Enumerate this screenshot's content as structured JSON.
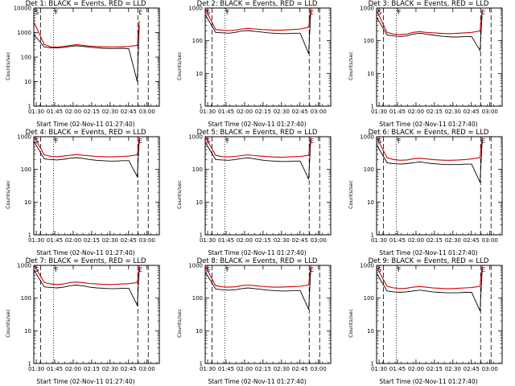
{
  "chart_data": [
    {
      "type": "line",
      "title": "Det 1: BLACK = Events, RED = LLD",
      "ylabel": "Counts/sec",
      "xlabel": "Start Time (02-Nov-11 01:27:40)",
      "yscale": "log",
      "ylim": [
        1,
        10000
      ],
      "yticks": [
        "1",
        "10",
        "100",
        "1000",
        "10000"
      ],
      "xticks": [
        "01:30",
        "01:45",
        "02:00",
        "02:15",
        "02:30",
        "02:45",
        "03:00"
      ],
      "markers": {
        "start": "S",
        "flare": "F",
        "end": "E"
      },
      "series": [
        {
          "color": "#000000",
          "values": [
            800,
            260,
            240,
            235,
            250,
            270,
            290,
            270,
            255,
            240,
            230,
            225,
            225,
            230,
            220,
            10,
            2000
          ]
        },
        {
          "color": "#d10000",
          "values": [
            2500,
            330,
            260,
            255,
            270,
            300,
            320,
            300,
            280,
            270,
            265,
            260,
            260,
            265,
            270,
            300,
            3000
          ]
        }
      ]
    },
    {
      "type": "line",
      "title": "Det 2: BLACK = Events, RED = LLD",
      "ylabel": "Counts/sec",
      "xlabel": "Start Time (02-Nov-11 01:27:40)",
      "yscale": "log",
      "ylim": [
        1,
        1000
      ],
      "yticks": [
        "1",
        "10",
        "100",
        "1000"
      ],
      "xticks": [
        "01:30",
        "01:45",
        "02:00",
        "02:15",
        "02:30",
        "02:45",
        "03:00"
      ],
      "markers": {
        "start": "S",
        "flare": "F",
        "end": "E"
      },
      "series": [
        {
          "color": "#000000",
          "values": [
            600,
            180,
            175,
            170,
            180,
            200,
            205,
            195,
            185,
            175,
            170,
            165,
            165,
            170,
            170,
            40,
            700
          ]
        },
        {
          "color": "#d10000",
          "values": [
            900,
            220,
            210,
            205,
            210,
            230,
            240,
            230,
            220,
            215,
            210,
            210,
            215,
            220,
            230,
            260,
            1000
          ]
        }
      ]
    },
    {
      "type": "line",
      "title": "Det 3: BLACK = Events, RED = LLD",
      "ylabel": "Counts/sec",
      "xlabel": "Start Time (02-Nov-11 01:27:40)",
      "yscale": "log",
      "ylim": [
        1,
        1000
      ],
      "yticks": [
        "1",
        "10",
        "100",
        "1000"
      ],
      "xticks": [
        "01:30",
        "01:45",
        "02:00",
        "02:15",
        "02:30",
        "02:45",
        "03:00"
      ],
      "markers": {
        "start": "S",
        "flare": "F",
        "end": "E"
      },
      "series": [
        {
          "color": "#000000",
          "values": [
            500,
            150,
            140,
            135,
            140,
            160,
            170,
            160,
            150,
            140,
            135,
            130,
            130,
            135,
            135,
            50,
            600
          ]
        },
        {
          "color": "#d10000",
          "values": [
            800,
            180,
            160,
            155,
            160,
            180,
            190,
            180,
            175,
            170,
            165,
            165,
            170,
            175,
            180,
            200,
            900
          ]
        }
      ]
    },
    {
      "type": "line",
      "title": "Det 4: BLACK = Events, RED = LLD",
      "ylabel": "Counts/sec",
      "xlabel": "Start Time (02-Nov-11 01:27:40)",
      "yscale": "log",
      "ylim": [
        1,
        1000
      ],
      "yticks": [
        "1",
        "10",
        "100",
        "1000"
      ],
      "xticks": [
        "01:30",
        "01:45",
        "02:00",
        "02:15",
        "02:30",
        "02:45",
        "03:00"
      ],
      "markers": {
        "start": "S",
        "flare": "F",
        "end": "E"
      },
      "series": [
        {
          "color": "#000000",
          "values": [
            700,
            210,
            200,
            195,
            205,
            220,
            230,
            215,
            200,
            190,
            185,
            180,
            180,
            185,
            185,
            60,
            800
          ]
        },
        {
          "color": "#d10000",
          "values": [
            1000,
            280,
            250,
            245,
            255,
            270,
            285,
            270,
            260,
            250,
            245,
            240,
            245,
            250,
            255,
            280,
            1000
          ]
        }
      ]
    },
    {
      "type": "line",
      "title": "Det 5: BLACK = Events, RED = LLD",
      "ylabel": "Counts/sec",
      "xlabel": "Start Time (02-Nov-11 01:27:40)",
      "yscale": "log",
      "ylim": [
        1,
        1000
      ],
      "yticks": [
        "1",
        "10",
        "100",
        "1000"
      ],
      "xticks": [
        "01:30",
        "01:45",
        "02:00",
        "02:15",
        "02:30",
        "02:45",
        "03:00"
      ],
      "markers": {
        "start": "S",
        "flare": "F",
        "end": "E"
      },
      "series": [
        {
          "color": "#000000",
          "values": [
            650,
            200,
            195,
            190,
            200,
            215,
            225,
            210,
            195,
            185,
            180,
            175,
            175,
            180,
            180,
            50,
            750
          ]
        },
        {
          "color": "#d10000",
          "values": [
            950,
            270,
            245,
            240,
            250,
            265,
            280,
            265,
            255,
            245,
            240,
            235,
            240,
            245,
            250,
            270,
            1000
          ]
        }
      ]
    },
    {
      "type": "line",
      "title": "Det 6: BLACK = Events, RED = LLD",
      "ylabel": "Counts/sec",
      "xlabel": "Start Time (02-Nov-11 01:27:40)",
      "yscale": "log",
      "ylim": [
        1,
        1000
      ],
      "yticks": [
        "1",
        "10",
        "100",
        "1000"
      ],
      "xticks": [
        "01:30",
        "01:45",
        "02:00",
        "02:15",
        "02:30",
        "02:45",
        "03:00"
      ],
      "markers": {
        "start": "S",
        "flare": "F",
        "end": "E"
      },
      "series": [
        {
          "color": "#000000",
          "values": [
            550,
            160,
            150,
            145,
            150,
            160,
            170,
            160,
            150,
            145,
            140,
            140,
            140,
            145,
            145,
            40,
            650
          ]
        },
        {
          "color": "#d10000",
          "values": [
            900,
            230,
            200,
            190,
            195,
            210,
            220,
            210,
            200,
            195,
            190,
            190,
            195,
            200,
            210,
            230,
            1000
          ]
        }
      ]
    },
    {
      "type": "line",
      "title": "Det 7: BLACK = Events, RED = LLD",
      "ylabel": "Counts/sec",
      "xlabel": "Start Time (02-Nov-11 01:27:40)",
      "yscale": "log",
      "ylim": [
        1,
        1000
      ],
      "yticks": [
        "1",
        "10",
        "100",
        "1000"
      ],
      "xticks": [
        "01:30",
        "01:45",
        "02:00",
        "02:15",
        "02:30",
        "02:45",
        "03:00"
      ],
      "markers": {
        "start": "S",
        "flare": "F",
        "end": "E"
      },
      "series": [
        {
          "color": "#000000",
          "values": [
            700,
            220,
            210,
            205,
            215,
            240,
            250,
            235,
            215,
            205,
            200,
            195,
            195,
            200,
            200,
            60,
            800
          ]
        },
        {
          "color": "#d10000",
          "values": [
            1000,
            300,
            270,
            260,
            270,
            300,
            310,
            295,
            280,
            270,
            265,
            260,
            265,
            270,
            275,
            300,
            1000
          ]
        }
      ]
    },
    {
      "type": "line",
      "title": "Det 8: BLACK = Events, RED = LLD",
      "ylabel": "Counts/sec",
      "xlabel": "Start Time (02-Nov-11 01:27:40)",
      "yscale": "log",
      "ylim": [
        1,
        1000
      ],
      "yticks": [
        "1",
        "10",
        "100",
        "1000"
      ],
      "xticks": [
        "01:30",
        "01:45",
        "02:00",
        "02:15",
        "02:30",
        "02:45",
        "03:00"
      ],
      "markers": {
        "start": "S",
        "flare": "F",
        "end": "E"
      },
      "series": [
        {
          "color": "#000000",
          "values": [
            600,
            190,
            180,
            175,
            180,
            195,
            205,
            195,
            185,
            175,
            170,
            165,
            165,
            170,
            170,
            45,
            700
          ]
        },
        {
          "color": "#d10000",
          "values": [
            900,
            240,
            220,
            215,
            220,
            240,
            250,
            240,
            230,
            220,
            215,
            215,
            220,
            225,
            230,
            250,
            1000
          ]
        }
      ]
    },
    {
      "type": "line",
      "title": "Det 9: BLACK = Events, RED = LLD",
      "ylabel": "Counts/sec",
      "xlabel": "Start Time (02-Nov-11 01:27:40)",
      "yscale": "log",
      "ylim": [
        1,
        1000
      ],
      "yticks": [
        "1",
        "10",
        "100",
        "1000"
      ],
      "xticks": [
        "01:30",
        "01:45",
        "02:00",
        "02:15",
        "02:30",
        "02:45",
        "03:00"
      ],
      "markers": {
        "start": "S",
        "flare": "F",
        "end": "E"
      },
      "series": [
        {
          "color": "#000000",
          "values": [
            550,
            165,
            155,
            150,
            155,
            165,
            175,
            165,
            155,
            150,
            145,
            145,
            145,
            150,
            150,
            40,
            650
          ]
        },
        {
          "color": "#d10000",
          "values": [
            850,
            230,
            205,
            195,
            200,
            215,
            225,
            215,
            205,
            200,
            195,
            195,
            200,
            205,
            210,
            230,
            1000
          ]
        }
      ]
    }
  ]
}
